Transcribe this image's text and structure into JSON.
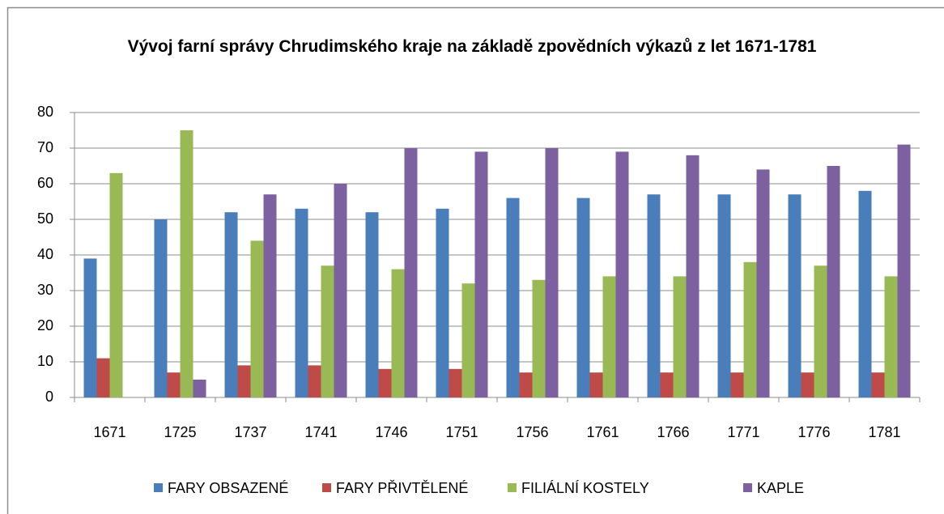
{
  "chart_data": {
    "type": "bar",
    "title": "Vývoj farní správy Chrudimského kraje na základě zpovědních výkazů z let 1671-1781",
    "categories": [
      "1671",
      "1725",
      "1737",
      "1741",
      "1746",
      "1751",
      "1756",
      "1761",
      "1766",
      "1771",
      "1776",
      "1781"
    ],
    "series": [
      {
        "name": "FARY OBSAZENÉ",
        "color": "#4a7ebb",
        "values": [
          39,
          50,
          52,
          53,
          52,
          53,
          56,
          56,
          57,
          57,
          57,
          58
        ]
      },
      {
        "name": "FARY PŘIVTĚLENÉ",
        "color": "#be4b48",
        "values": [
          11,
          7,
          9,
          9,
          8,
          8,
          7,
          7,
          7,
          7,
          7,
          7
        ]
      },
      {
        "name": "FILIÁLNÍ KOSTELY",
        "color": "#98b954",
        "values": [
          63,
          75,
          44,
          37,
          36,
          32,
          33,
          34,
          34,
          38,
          37,
          34
        ]
      },
      {
        "name": "KAPLE",
        "color": "#7d60a0",
        "values": [
          null,
          5,
          57,
          60,
          70,
          69,
          70,
          69,
          68,
          64,
          65,
          71
        ]
      }
    ],
    "ylim": [
      0,
      80
    ],
    "yticks": [
      0,
      10,
      20,
      30,
      40,
      50,
      60,
      70,
      80
    ],
    "grid": true,
    "legend": "bottom"
  }
}
